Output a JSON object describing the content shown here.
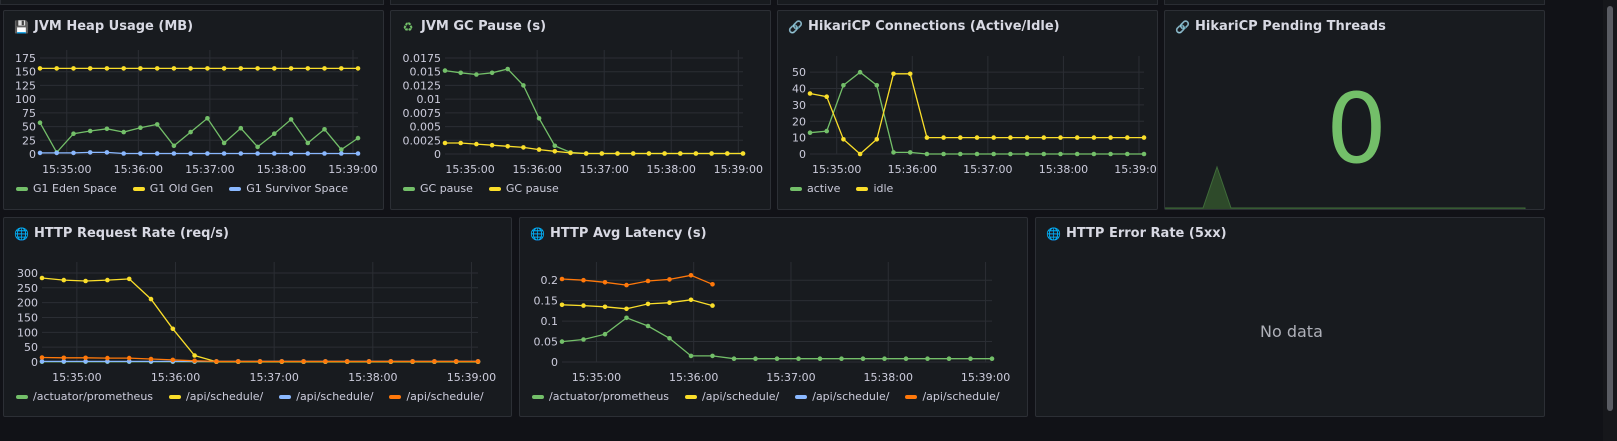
{
  "colors": {
    "green": "#73bf69",
    "yellow": "#fade2a",
    "blue": "#8ab8ff",
    "orange": "#ff780a",
    "grid": "#2b2e34",
    "axis": "#ccccdc"
  },
  "panels": [
    {
      "id": "heap",
      "title": "JVM Heap Usage (MB)",
      "icon": "floppy-disk-icon",
      "glyph": "💾",
      "chart_data": {
        "type": "line",
        "yticks": [
          "175",
          "150",
          "125",
          "100",
          "75",
          "50",
          "25",
          "0"
        ],
        "ylim": [
          0,
          175
        ],
        "xticks": [
          "15:35:00",
          "15:36:00",
          "15:37:00",
          "15:38:00",
          "15:39:00"
        ],
        "series": [
          {
            "name": "G1 Eden Space",
            "color": "#73bf69",
            "values": [
              57,
              3,
              37,
              42,
              46,
              40,
              48,
              54,
              15,
              40,
              65,
              20,
              47,
              13,
              37,
              63,
              20,
              45,
              8,
              29
            ]
          },
          {
            "name": "G1 Old Gen",
            "color": "#fade2a",
            "values": [
              156,
              156,
              156,
              156,
              156,
              156,
              156,
              156,
              156,
              156,
              156,
              156,
              156,
              156,
              156,
              156,
              156,
              156,
              156,
              156
            ]
          },
          {
            "name": "G1 Survivor Space",
            "color": "#8ab8ff",
            "values": [
              2,
              2,
              2,
              3,
              3,
              1,
              1,
              1,
              1,
              1,
              1,
              1,
              1,
              1,
              1,
              1,
              1,
              1,
              1,
              1
            ]
          }
        ]
      }
    },
    {
      "id": "gc",
      "title": "JVM GC Pause (s)",
      "icon": "recycle-icon",
      "glyph": "♻",
      "chart_data": {
        "type": "line",
        "yticks": [
          "0.0175",
          "0.015",
          "0.0125",
          "0.01",
          "0.0075",
          "0.005",
          "0.0025",
          "0"
        ],
        "ylim": [
          0,
          0.0175
        ],
        "xticks": [
          "15:35:00",
          "15:36:00",
          "15:37:00",
          "15:38:00",
          "15:39:00"
        ],
        "series": [
          {
            "name": "GC pause",
            "color": "#73bf69",
            "values": [
              0.0152,
              0.0148,
              0.0145,
              0.0148,
              0.0155,
              0.0125,
              0.0065,
              0.0015,
              0.0003,
              0.0001,
              0.0001,
              0.0001,
              0.0001,
              0.0001,
              0.0001,
              0.0001,
              0.0001,
              0.0001,
              0.0001,
              0.0001
            ]
          },
          {
            "name": "GC pause",
            "color": "#fade2a",
            "values": [
              0.002,
              0.002,
              0.0018,
              0.0016,
              0.0014,
              0.0012,
              0.0008,
              0.0005,
              0.0002,
              0.0001,
              0.0001,
              0.0001,
              0.0001,
              0.0001,
              0.0001,
              0.0001,
              0.0001,
              0.0001,
              0.0001,
              0.0001
            ]
          }
        ]
      }
    },
    {
      "id": "hikari",
      "title": "HikariCP Connections (Active/Idle)",
      "icon": "link-icon",
      "glyph": "🔗",
      "chart_data": {
        "type": "line",
        "yticks": [
          "50",
          "40",
          "30",
          "20",
          "10",
          "0"
        ],
        "ylim": [
          0,
          55
        ],
        "xticks": [
          "15:35:00",
          "15:36:00",
          "15:37:00",
          "15:38:00",
          "15:39:00"
        ],
        "series": [
          {
            "name": "active",
            "color": "#73bf69",
            "values": [
              13,
              14,
              42,
              50,
              42,
              1,
              1,
              0,
              0,
              0,
              0,
              0,
              0,
              0,
              0,
              0,
              0,
              0,
              0,
              0,
              0
            ]
          },
          {
            "name": "idle",
            "color": "#fade2a",
            "values": [
              37,
              35,
              9,
              0,
              9,
              49,
              49,
              10,
              10,
              10,
              10,
              10,
              10,
              10,
              10,
              10,
              10,
              10,
              10,
              10,
              10
            ]
          }
        ]
      }
    },
    {
      "id": "pending",
      "title": "HikariCP Pending Threads",
      "icon": "link-icon",
      "glyph": "🔗",
      "value": "0"
    },
    {
      "id": "reqrate",
      "title": "HTTP Request Rate (req/s)",
      "icon": "globe-icon",
      "glyph": "🌐",
      "chart_data": {
        "type": "line",
        "yticks": [
          "300",
          "250",
          "200",
          "150",
          "100",
          "50",
          "0"
        ],
        "ylim": [
          0,
          310
        ],
        "xticks": [
          "15:35:00",
          "15:36:00",
          "15:37:00",
          "15:38:00",
          "15:39:00"
        ],
        "series": [
          {
            "name": "/actuator/prometheus",
            "color": "#73bf69",
            "values": [
              1,
              1,
              1,
              1,
              1,
              1,
              1,
              1,
              1,
              1,
              1,
              1,
              1,
              1,
              1,
              1,
              1,
              1,
              1,
              1,
              1
            ]
          },
          {
            "name": "/api/schedule/",
            "color": "#fade2a",
            "values": [
              283,
              276,
              273,
              276,
              280,
              212,
              112,
              22,
              1,
              1,
              1,
              1,
              1,
              1,
              1,
              1,
              1,
              1,
              1,
              1,
              1
            ]
          },
          {
            "name": "/api/schedule/",
            "color": "#8ab8ff",
            "values": [
              2,
              2,
              2,
              2,
              2,
              2,
              2,
              2,
              2,
              2,
              2,
              2,
              2,
              2,
              2,
              2,
              2,
              2,
              2,
              2,
              2
            ]
          },
          {
            "name": "/api/schedule/",
            "color": "#ff780a",
            "values": [
              15,
              14,
              14,
              13,
              13,
              10,
              7,
              4,
              2,
              2,
              2,
              2,
              2,
              2,
              2,
              2,
              2,
              2,
              2,
              2,
              2
            ]
          }
        ]
      }
    },
    {
      "id": "latency",
      "title": "HTTP Avg Latency (s)",
      "icon": "globe-icon",
      "glyph": "🌐",
      "chart_data": {
        "type": "line",
        "yticks": [
          "0.2",
          "0.15",
          "0.1",
          "0.05",
          "0"
        ],
        "ylim": [
          0,
          0.225
        ],
        "xticks": [
          "15:35:00",
          "15:36:00",
          "15:37:00",
          "15:38:00",
          "15:39:00"
        ],
        "series": [
          {
            "name": "/actuator/prometheus",
            "color": "#73bf69",
            "values": [
              0.05,
              0.055,
              0.068,
              0.108,
              0.088,
              0.058,
              0.015,
              0.015,
              0.008,
              0.008,
              0.008,
              0.008,
              0.008,
              0.008,
              0.008,
              0.008,
              0.008,
              0.008,
              0.008,
              0.008,
              0.008
            ]
          },
          {
            "name": "/api/schedule/",
            "color": "#fade2a",
            "values": [
              0.14,
              0.138,
              0.135,
              0.13,
              0.142,
              0.145,
              0.152,
              0.138,
              null,
              null,
              null,
              null,
              null,
              null,
              null,
              null,
              null,
              null,
              null,
              null,
              null
            ]
          },
          {
            "name": "/api/schedule/",
            "color": "#8ab8ff",
            "values": []
          },
          {
            "name": "/api/schedule/",
            "color": "#ff780a",
            "values": [
              0.203,
              0.2,
              0.195,
              0.188,
              0.198,
              0.202,
              0.212,
              0.19,
              null,
              null,
              null,
              null,
              null,
              null,
              null,
              null,
              null,
              null,
              null,
              null,
              null
            ]
          }
        ]
      }
    },
    {
      "id": "errrate",
      "title": "HTTP Error Rate (5xx)",
      "icon": "globe-icon",
      "glyph": "🌐",
      "nodata": "No data"
    }
  ]
}
